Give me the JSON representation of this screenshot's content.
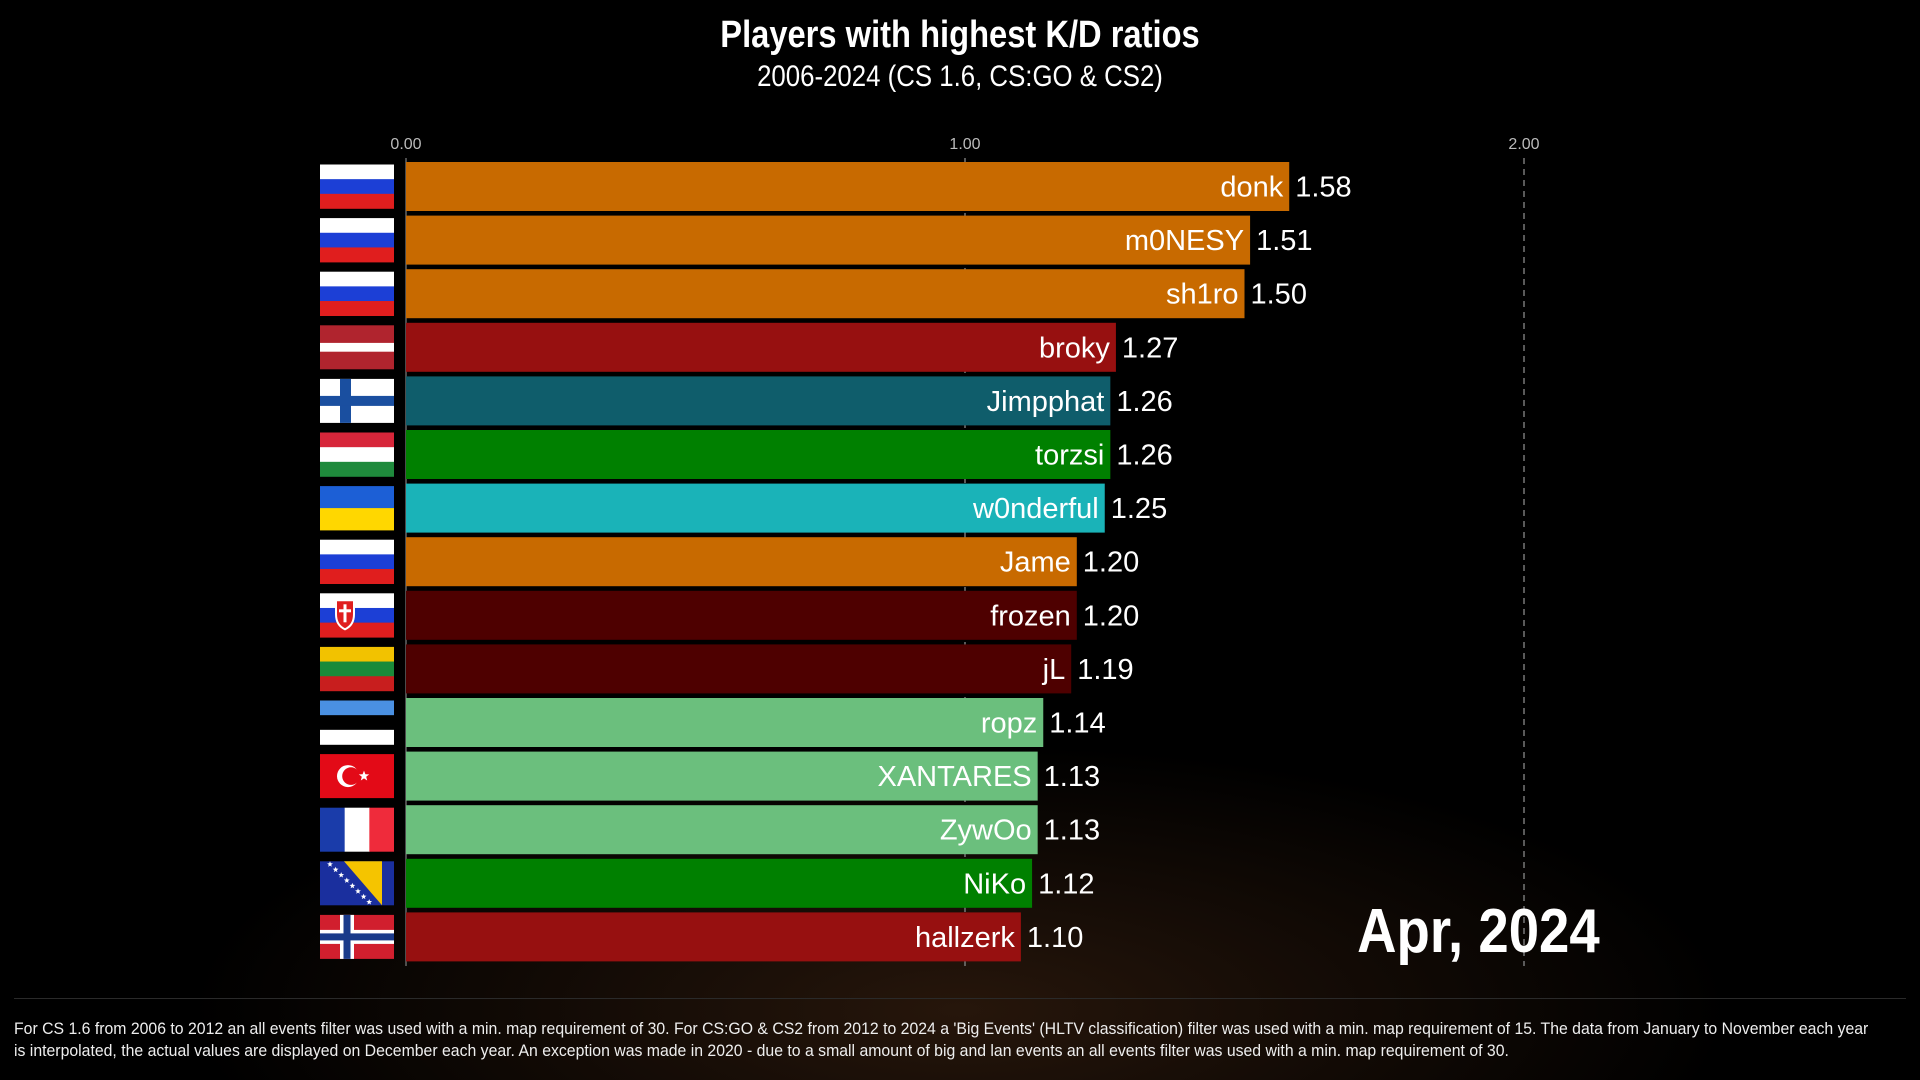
{
  "title": "Players with highest K/D ratios",
  "subtitle": "2006-2024 (CS 1.6, CS:GO & CS2)",
  "period": "Apr, 2024",
  "footnote": "For CS 1.6 from 2006 to 2012 an all events filter was used with a min. map requirement of 30. For CS:GO & CS2 from 2012 to 2024 a 'Big Events' (HLTV classification) filter was used with a min. map requirement of 15. The data from January to November each year is interpolated, the actual values are displayed on December each year. An exception was made in 2020 - due to a small amount of big and lan events an all events filter was used with a min. map requirement of 30.",
  "chart_data": {
    "type": "bar",
    "orientation": "horizontal",
    "title": "Players with highest K/D ratios",
    "subtitle": "2006-2024 (CS 1.6, CS:GO & CS2)",
    "xlim": [
      0,
      2.0
    ],
    "ticks": [
      0,
      1,
      2
    ],
    "tick_labels": [
      "0.00",
      "1.00",
      "2.00"
    ],
    "gridlines": "dashed vertical",
    "bars": [
      {
        "name": "donk",
        "value": 1.58,
        "label": "1.58",
        "color": "#c86a00",
        "flag": "russia"
      },
      {
        "name": "m0NESY",
        "value": 1.51,
        "label": "1.51",
        "color": "#c86a00",
        "flag": "russia"
      },
      {
        "name": "sh1ro",
        "value": 1.5,
        "label": "1.50",
        "color": "#c86a00",
        "flag": "russia"
      },
      {
        "name": "broky",
        "value": 1.27,
        "label": "1.27",
        "color": "#971010",
        "flag": "latvia"
      },
      {
        "name": "Jimpphat",
        "value": 1.26,
        "label": "1.26",
        "color": "#0f5d6b",
        "flag": "finland"
      },
      {
        "name": "torzsi",
        "value": 1.26,
        "label": "1.26",
        "color": "#008000",
        "flag": "hungary"
      },
      {
        "name": "w0nderful",
        "value": 1.25,
        "label": "1.25",
        "color": "#1ab3b8",
        "flag": "ukraine"
      },
      {
        "name": "Jame",
        "value": 1.2,
        "label": "1.20",
        "color": "#c86a00",
        "flag": "russia"
      },
      {
        "name": "frozen",
        "value": 1.2,
        "label": "1.20",
        "color": "#4e0000",
        "flag": "slovakia"
      },
      {
        "name": "jL",
        "value": 1.19,
        "label": "1.19",
        "color": "#4e0000",
        "flag": "lithuania"
      },
      {
        "name": "ropz",
        "value": 1.14,
        "label": "1.14",
        "color": "#6bbf7d",
        "flag": "estonia"
      },
      {
        "name": "XANTARES",
        "value": 1.13,
        "label": "1.13",
        "color": "#6bbf7d",
        "flag": "turkey"
      },
      {
        "name": "ZywOo",
        "value": 1.13,
        "label": "1.13",
        "color": "#6bbf7d",
        "flag": "france"
      },
      {
        "name": "NiKo",
        "value": 1.12,
        "label": "1.12",
        "color": "#008000",
        "flag": "bosnia"
      },
      {
        "name": "hallzerk",
        "value": 1.1,
        "label": "1.10",
        "color": "#971010",
        "flag": "norway"
      }
    ]
  }
}
